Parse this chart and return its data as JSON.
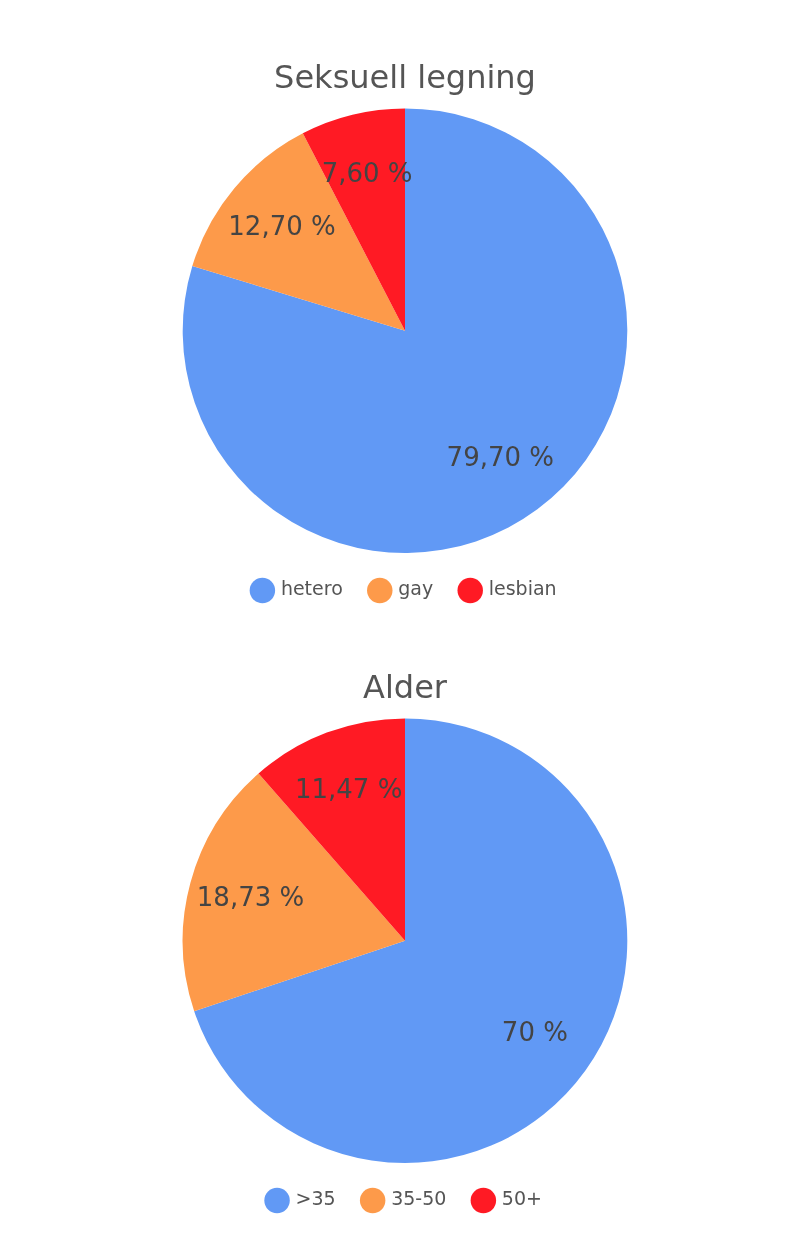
{
  "chart_data": [
    {
      "type": "pie",
      "title": "Seksuell legning",
      "categories": [
        "hetero",
        "gay",
        "lesbian"
      ],
      "values": [
        79.7,
        12.7,
        7.6
      ],
      "colors": [
        "#6199f5",
        "#fd9a4a",
        "#ff1a24"
      ],
      "value_labels": [
        "79,70 %",
        "12,70 %",
        "7,60 %"
      ],
      "legend": "bottom"
    },
    {
      "type": "pie",
      "title": "Alder",
      "categories": [
        ">35",
        "35-50",
        "50+"
      ],
      "values": [
        70,
        18.73,
        11.47
      ],
      "colors": [
        "#6199f5",
        "#fd9a4a",
        "#ff1a24"
      ],
      "value_labels": [
        "70 %",
        "18,73 %",
        "11,47 %"
      ],
      "legend": "bottom"
    }
  ]
}
